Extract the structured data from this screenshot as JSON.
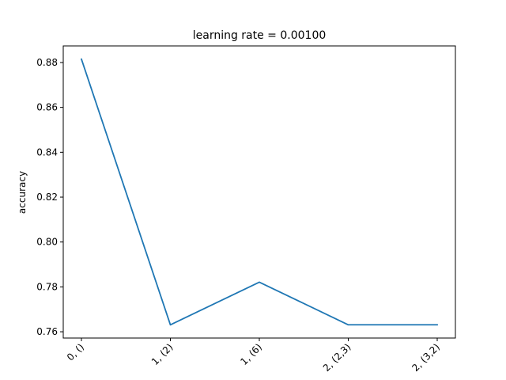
{
  "chart_data": {
    "type": "line",
    "title": "learning rate = 0.00100",
    "xlabel": "",
    "ylabel": "accuracy",
    "categories": [
      "0, ()",
      "1, (2)",
      "1, (6)",
      "2, (2,3)",
      "2, (3,2)"
    ],
    "series": [
      {
        "name": "accuracy",
        "color": "#1f77b4",
        "values": [
          0.8815,
          0.7631,
          0.7821,
          0.7631,
          0.7631
        ]
      }
    ],
    "ylim": [
      0.7572,
      0.8874
    ],
    "yticks": [
      0.76,
      0.78,
      0.8,
      0.82,
      0.84,
      0.86,
      0.88
    ],
    "ytick_labels": [
      "0.76",
      "0.78",
      "0.80",
      "0.82",
      "0.84",
      "0.86",
      "0.88"
    ],
    "grid": false,
    "legend": "none"
  }
}
